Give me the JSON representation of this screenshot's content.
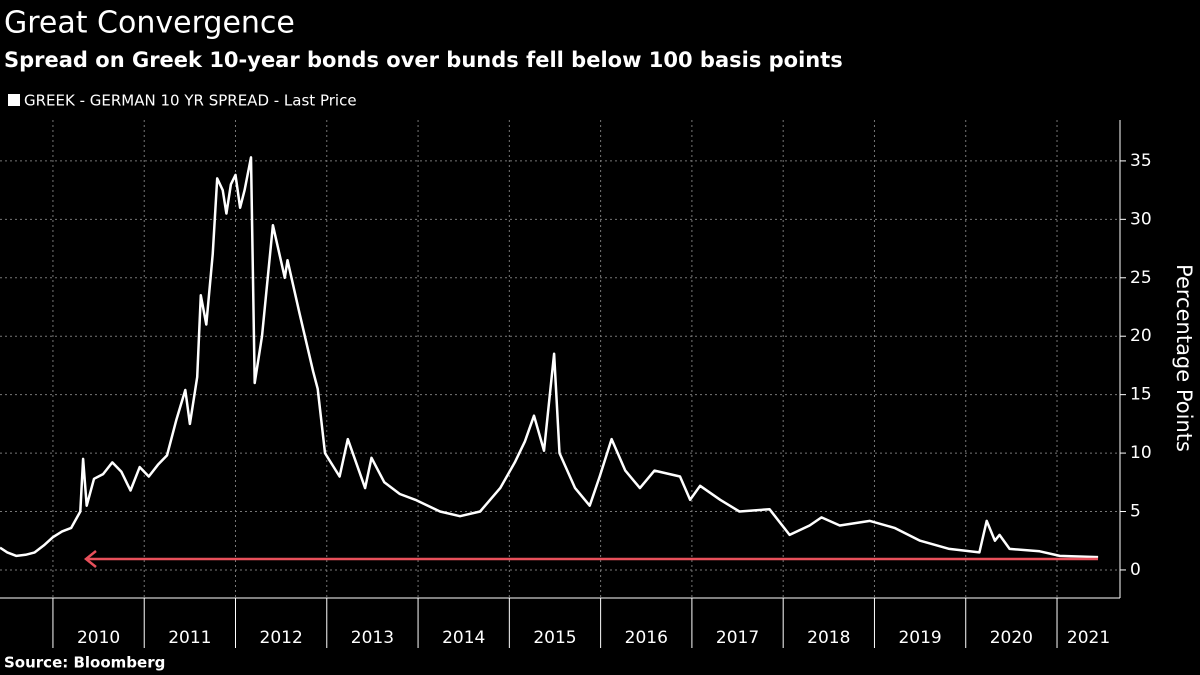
{
  "chart_data": {
    "type": "line",
    "title": "Great Convergence",
    "subtitle": "Spread on Greek 10-year bonds over bunds fell below 100 basis points",
    "y_label": "Percentage Points",
    "source": "Source: Bloomberg",
    "x": [
      2009.42,
      2009.5,
      2009.6,
      2009.7,
      2009.8,
      2009.9,
      2010.0,
      2010.1,
      2010.2,
      2010.3,
      2010.33,
      2010.37,
      2010.45,
      2010.55,
      2010.65,
      2010.75,
      2010.85,
      2010.95,
      2011.05,
      2011.15,
      2011.25,
      2011.35,
      2011.45,
      2011.5,
      2011.58,
      2011.62,
      2011.68,
      2011.75,
      2011.8,
      2011.86,
      2011.9,
      2011.95,
      2012.0,
      2012.05,
      2012.1,
      2012.17,
      2012.21,
      2012.29,
      2012.41,
      2012.54,
      2012.57,
      2012.7,
      2012.85,
      2012.9,
      2012.98,
      2013.14,
      2013.23,
      2013.42,
      2013.49,
      2013.63,
      2013.8,
      2013.97,
      2014.24,
      2014.46,
      2014.68,
      2014.9,
      2015.06,
      2015.17,
      2015.27,
      2015.38,
      2015.49,
      2015.55,
      2015.72,
      2015.88,
      2015.99,
      2016.12,
      2016.27,
      2016.43,
      2016.59,
      2016.87,
      2016.98,
      2017.09,
      2017.31,
      2017.52,
      2017.85,
      2018.07,
      2018.29,
      2018.42,
      2018.62,
      2018.95,
      2019.22,
      2019.5,
      2019.82,
      2020.15,
      2020.23,
      2020.32,
      2020.37,
      2020.48,
      2020.81,
      2021.03,
      2021.45
    ],
    "series": [
      {
        "name": "GREEK - GERMAN 10 YR SPREAD - Last Price",
        "color": "#ffffff",
        "values": [
          1.9,
          1.5,
          1.2,
          1.3,
          1.5,
          2.1,
          2.8,
          3.3,
          3.6,
          5.0,
          9.5,
          5.5,
          7.8,
          8.2,
          9.2,
          8.4,
          6.8,
          8.8,
          8.0,
          9.0,
          9.8,
          12.8,
          15.4,
          12.5,
          16.5,
          23.5,
          21.0,
          27.0,
          33.5,
          32.5,
          30.5,
          33.0,
          33.8,
          31.0,
          32.5,
          35.3,
          16.0,
          20.0,
          29.5,
          25.0,
          26.5,
          22.0,
          17.0,
          15.5,
          10.0,
          8.0,
          11.2,
          7.0,
          9.6,
          7.5,
          6.5,
          6.0,
          5.0,
          4.6,
          5.0,
          7.0,
          9.2,
          11.0,
          13.2,
          10.2,
          18.5,
          10.0,
          7.0,
          5.5,
          8.0,
          11.2,
          8.5,
          7.0,
          8.5,
          8.0,
          6.0,
          7.2,
          6.0,
          5.0,
          5.2,
          3.0,
          3.8,
          4.5,
          3.8,
          4.2,
          3.6,
          2.5,
          1.8,
          1.5,
          4.2,
          2.5,
          3.0,
          1.8,
          1.6,
          1.2,
          1.1
        ]
      }
    ],
    "xlim": [
      2009.42,
      2021.69
    ],
    "xticks": [
      2010,
      2011,
      2012,
      2013,
      2014,
      2015,
      2016,
      2017,
      2018,
      2019,
      2020,
      2021
    ],
    "ylim": [
      -2.4,
      38.5
    ],
    "yticks": [
      0,
      5,
      10,
      15,
      20,
      25,
      30,
      35
    ],
    "grid": true
  }
}
